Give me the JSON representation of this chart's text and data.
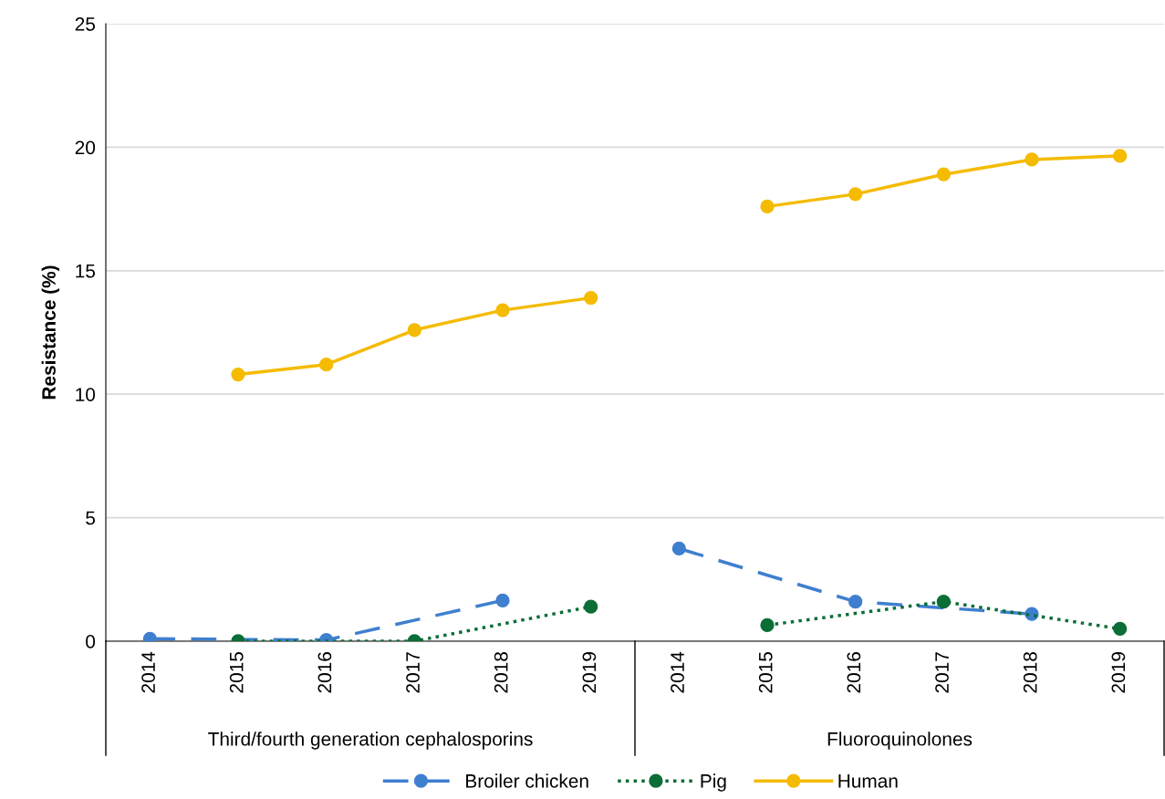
{
  "chart_data": {
    "type": "line",
    "ylabel": "Resistance (%)",
    "categories": [
      "2014",
      "2015",
      "2016",
      "2017",
      "2018",
      "2019",
      "2014",
      "2015",
      "2016",
      "2017",
      "2018",
      "2019"
    ],
    "series": [
      {
        "name": "Broiler chicken",
        "color": "#3f7fcf",
        "line_style": "dashed",
        "values": [
          0.1,
          null,
          0.05,
          null,
          1.65,
          null,
          3.75,
          null,
          1.6,
          null,
          1.1,
          null
        ]
      },
      {
        "name": "Pig",
        "color": "#0b6e36",
        "line_style": "dotted",
        "values": [
          null,
          0.0,
          null,
          0.0,
          null,
          1.4,
          null,
          0.65,
          null,
          1.6,
          null,
          0.5
        ]
      },
      {
        "name": "Human",
        "color": "#f4bb00",
        "line_style": "solid",
        "values": [
          null,
          10.8,
          11.2,
          12.6,
          13.4,
          13.9,
          null,
          17.6,
          18.1,
          18.9,
          19.5,
          19.65
        ]
      }
    ],
    "annotations": [
      "Third/fourth generation cephalosporins",
      "Fluoroquinolones"
    ],
    "ylim": [
      0,
      25
    ],
    "yticks": [
      0,
      5,
      10,
      15,
      20,
      25
    ],
    "grid": "y",
    "legend": "bottom",
    "marker": "circle"
  }
}
